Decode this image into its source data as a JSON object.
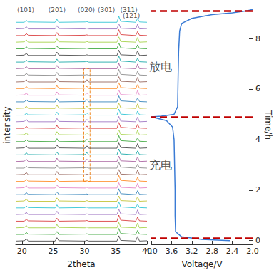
{
  "chart_data": [
    {
      "type": "line",
      "x_label": "2theta",
      "y_label": "intensity",
      "xlim": [
        19,
        40
      ],
      "xticks": [
        20,
        25,
        30,
        35,
        40
      ],
      "ylim": [
        -0.5,
        35.5
      ],
      "tick_labels": "x",
      "grid": false,
      "x": [
        19,
        20.4,
        20.7,
        21,
        25.3,
        25.6,
        25.9,
        30.1,
        30.4,
        30.7,
        35.2,
        35.5,
        35.8,
        38.2,
        38.5,
        38.8,
        40
      ],
      "series": [
        {
          "color": "#333333",
          "values": [
            0,
            0.05,
            0.35,
            0,
            0,
            0.5,
            0.05,
            0,
            0.1,
            0,
            0,
            0.8,
            0.1,
            0,
            0.7,
            0,
            0.05
          ]
        },
        {
          "color": "#2ca02c",
          "values": [
            1,
            1,
            1.3,
            1.05,
            1,
            1.45,
            1,
            1.05,
            1.1,
            1,
            1,
            1.9,
            1.15,
            1,
            1.6,
            1.05,
            1
          ]
        },
        {
          "color": "#9acd32",
          "values": [
            2,
            2.05,
            2.35,
            2,
            2,
            2.5,
            2.05,
            2,
            2.1,
            2,
            2,
            2.8,
            2.1,
            2,
            2.7,
            2,
            2.05
          ]
        },
        {
          "color": "#d62728",
          "values": [
            3,
            3,
            3.3,
            3.05,
            3,
            3.45,
            3,
            3.05,
            3.1,
            3,
            3,
            3.9,
            3.15,
            3,
            3.6,
            3.05,
            3
          ]
        },
        {
          "color": "#9467bd",
          "values": [
            4,
            4.05,
            4.35,
            4,
            4,
            4.5,
            4.05,
            4,
            4.1,
            4,
            4,
            4.8,
            4.1,
            4,
            4.7,
            4,
            4.05
          ]
        },
        {
          "color": "#17becf",
          "values": [
            5,
            5,
            5.3,
            5.05,
            5,
            5.45,
            5,
            5.05,
            5.1,
            5,
            5,
            5.9,
            5.15,
            5,
            5.6,
            5.05,
            5
          ]
        },
        {
          "color": "#bcbd22",
          "values": [
            6,
            6.05,
            6.35,
            6,
            6,
            6.5,
            6.05,
            6,
            6.1,
            6,
            6,
            6.8,
            6.1,
            6,
            6.7,
            6,
            6.05
          ]
        },
        {
          "color": "#1f77b4",
          "values": [
            7,
            7,
            7.3,
            7.05,
            7,
            7.45,
            7,
            7.05,
            7.1,
            7,
            7,
            7.9,
            7.15,
            7,
            7.6,
            7.05,
            7
          ]
        },
        {
          "color": "#e377c2",
          "values": [
            8,
            8.05,
            8.35,
            8,
            8,
            8.5,
            8.05,
            8,
            8.1,
            8,
            8,
            8.8,
            8.1,
            8,
            8.7,
            8,
            8.05
          ]
        },
        {
          "color": "#ff7f0e",
          "values": [
            9,
            9,
            9.3,
            9.05,
            9,
            9.45,
            9,
            9.05,
            9.1,
            9,
            9,
            9.9,
            9.15,
            9,
            9.6,
            9.05,
            9
          ]
        },
        {
          "color": "#8c564b",
          "values": [
            10,
            10.05,
            10.35,
            10,
            10,
            10.5,
            10.05,
            10,
            10.1,
            10,
            10,
            10.8,
            10.1,
            10,
            10.7,
            10,
            10.05
          ]
        },
        {
          "color": "#7f7f7f",
          "values": [
            11,
            11,
            11.3,
            11.05,
            11,
            11.45,
            11,
            11.05,
            11.1,
            11,
            11,
            11.9,
            11.15,
            11,
            11.6,
            11.05,
            11
          ]
        },
        {
          "color": "#a05195",
          "values": [
            12,
            12.05,
            12.35,
            12,
            12,
            12.5,
            12.05,
            12,
            12.35,
            12,
            12,
            12.8,
            12.1,
            12,
            12.7,
            12,
            12.05
          ]
        },
        {
          "color": "#00a0a0",
          "values": [
            13,
            13,
            13.3,
            13.05,
            13,
            13.45,
            13,
            13.05,
            13.35,
            13,
            13,
            13.9,
            13.15,
            13,
            13.6,
            13.05,
            13
          ]
        },
        {
          "color": "#333333",
          "values": [
            14,
            14.05,
            14.35,
            14,
            14,
            14.5,
            14.05,
            14,
            14.35,
            14,
            14,
            14.8,
            14.1,
            14,
            14.7,
            14,
            14.05
          ]
        },
        {
          "color": "#2ca02c",
          "values": [
            15,
            15,
            15.3,
            15.05,
            15,
            15.45,
            15,
            15.05,
            15.35,
            15,
            15,
            15.9,
            15.15,
            15,
            15.6,
            15.05,
            15
          ]
        },
        {
          "color": "#9acd32",
          "values": [
            16,
            16.05,
            16.35,
            16,
            16,
            16.5,
            16.05,
            16,
            16.35,
            16,
            16,
            16.8,
            16.1,
            16,
            16.7,
            16,
            16.05
          ]
        },
        {
          "color": "#d62728",
          "values": [
            17,
            17,
            17.3,
            17.05,
            17,
            17.45,
            17,
            17.05,
            17.35,
            17,
            17,
            17.9,
            17.15,
            17,
            17.6,
            17.05,
            17
          ]
        },
        {
          "color": "#9467bd",
          "values": [
            18,
            18.05,
            18.35,
            18,
            18,
            18.5,
            18.05,
            18,
            18.35,
            18,
            18,
            18.8,
            18.1,
            18,
            18.7,
            18,
            18.05
          ]
        },
        {
          "color": "#17becf",
          "values": [
            19,
            19,
            19.3,
            19.05,
            19,
            19.45,
            19,
            19.05,
            19.35,
            19,
            19,
            19.9,
            19.15,
            19,
            19.6,
            19.05,
            19
          ]
        },
        {
          "color": "#bcbd22",
          "values": [
            20,
            20.05,
            20.35,
            20,
            20,
            20.5,
            20.05,
            20,
            20.35,
            20,
            20,
            20.8,
            20.1,
            20,
            20.7,
            20,
            20.05
          ]
        },
        {
          "color": "#1f77b4",
          "values": [
            21,
            21,
            21.3,
            21.05,
            21,
            21.45,
            21,
            21.05,
            21.35,
            21,
            21,
            21.9,
            21.15,
            21,
            21.6,
            21.05,
            21
          ]
        },
        {
          "color": "#e377c2",
          "values": [
            22,
            22.05,
            22.35,
            22,
            22,
            22.5,
            22.05,
            22,
            22.35,
            22,
            22,
            22.8,
            22.1,
            22,
            22.7,
            22,
            22.05
          ]
        },
        {
          "color": "#ff7f0e",
          "values": [
            23,
            23,
            23.3,
            23.05,
            23,
            23.45,
            23,
            23.05,
            23.35,
            23,
            23,
            23.9,
            23.15,
            23,
            23.6,
            23.05,
            23
          ]
        },
        {
          "color": "#8c564b",
          "values": [
            24,
            24.05,
            24.35,
            24,
            24,
            24.5,
            24.05,
            24,
            24.35,
            24,
            24,
            24.8,
            24.1,
            24,
            24.7,
            24,
            24.05
          ]
        },
        {
          "color": "#7f7f7f",
          "values": [
            25,
            25,
            25.3,
            25.05,
            25,
            25.45,
            25,
            25.05,
            25.1,
            25,
            25,
            25.9,
            25.15,
            25,
            25.6,
            25.05,
            25
          ]
        },
        {
          "color": "#a05195",
          "values": [
            26,
            26.05,
            26.35,
            26,
            26,
            26.5,
            26.05,
            26,
            26.1,
            26,
            26,
            26.8,
            26.1,
            26,
            26.7,
            26,
            26.05
          ]
        },
        {
          "color": "#00a0a0",
          "values": [
            27,
            27,
            27.3,
            27.05,
            27,
            27.45,
            27,
            27.05,
            27.1,
            27,
            27,
            27.9,
            27.15,
            27,
            27.6,
            27.05,
            27
          ]
        },
        {
          "color": "#333333",
          "values": [
            28,
            28.05,
            28.35,
            28,
            28,
            28.5,
            28.05,
            28,
            28.1,
            28,
            28,
            28.8,
            28.1,
            28,
            28.7,
            28,
            28.05
          ]
        },
        {
          "color": "#2ca02c",
          "values": [
            29,
            29,
            29.3,
            29.05,
            29,
            29.45,
            29,
            29.05,
            29.1,
            29,
            29,
            29.9,
            29.15,
            29,
            29.6,
            29.05,
            29
          ]
        },
        {
          "color": "#9acd32",
          "values": [
            30,
            30.05,
            30.35,
            30,
            30,
            30.5,
            30.05,
            30,
            30.1,
            30,
            30,
            30.8,
            30.1,
            30,
            30.7,
            30,
            30.05
          ]
        },
        {
          "color": "#d62728",
          "values": [
            31,
            31,
            31.3,
            31.05,
            31,
            31.45,
            31,
            31.05,
            31.1,
            31,
            31,
            31.9,
            31.15,
            31,
            31.6,
            31.05,
            31
          ]
        },
        {
          "color": "#9467bd",
          "values": [
            32,
            32.05,
            32.35,
            32,
            32,
            32.5,
            32.05,
            32,
            32.1,
            32,
            32,
            32.8,
            32.1,
            32,
            32.7,
            32,
            32.05
          ]
        },
        {
          "color": "#17becf",
          "values": [
            33,
            33,
            33.3,
            33.05,
            33,
            33.45,
            33,
            33.05,
            33.1,
            33,
            33,
            33.9,
            33.15,
            33,
            33.6,
            33.05,
            33
          ]
        }
      ],
      "annotations": [
        {
          "text": "(101)",
          "x": 20.6,
          "y": 34.9
        },
        {
          "text": "(201)",
          "x": 25.6,
          "y": 34.9
        },
        {
          "text": "(020)",
          "x": 30.3,
          "y": 34.9
        },
        {
          "text": "(301)",
          "x": 33.5,
          "y": 34.9
        },
        {
          "text": "(311)",
          "x": 37.1,
          "y": 34.9
        },
        {
          "text": "(121)",
          "x": 37.5,
          "y": 34.0
        }
      ],
      "highlight": {
        "x": [
          29.9,
          30.9
        ],
        "y": [
          9,
          26
        ]
      }
    },
    {
      "type": "line",
      "x_label": "Voltage/V",
      "y_label": "Time/h",
      "xlim": [
        4,
        2
      ],
      "xticks": [
        {
          "value": 4,
          "label": "4.0"
        },
        {
          "value": 3.6,
          "label": "3.6"
        },
        {
          "value": 3.2,
          "label": "3.2"
        },
        {
          "value": 2.8,
          "label": "2.8"
        },
        {
          "value": 2.4,
          "label": "2.4"
        },
        {
          "value": 2,
          "label": "2.0"
        }
      ],
      "ylim": [
        -0.15,
        9.3
      ],
      "yticks": [
        0,
        2,
        4,
        6,
        8
      ],
      "grid": false,
      "color": "#3a7bd5",
      "x": [
        2.45,
        3.0,
        3.4,
        3.52,
        3.53,
        3.53,
        3.54,
        3.55,
        3.58,
        3.7,
        4.0,
        3.8,
        3.55,
        3.48,
        3.47,
        3.46,
        3.44,
        3.4,
        3.2,
        2.8,
        2.4,
        2.1,
        2.0
      ],
      "values": [
        0,
        0.05,
        0.15,
        0.35,
        1,
        2,
        3,
        4,
        4.5,
        4.75,
        4.9,
        4.93,
        5.0,
        5.3,
        6.5,
        7.5,
        8.3,
        8.6,
        8.8,
        8.95,
        9.02,
        9.1,
        9.15
      ],
      "reference_lines": [
        0.1,
        4.9,
        9.1
      ],
      "annotations": [
        {
          "text": "放电",
          "x": 3.82,
          "y": 6.9
        },
        {
          "text": "充电",
          "x": 3.82,
          "y": 3.0
        }
      ]
    }
  ]
}
